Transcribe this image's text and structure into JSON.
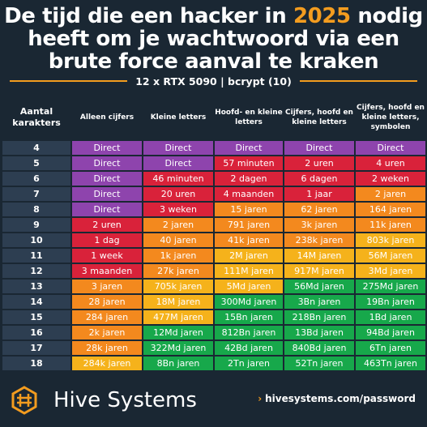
{
  "title": {
    "before": "De tijd die een hacker in ",
    "year": "2025",
    "after": " nodig heeft om je wachtwoord via een brute force aanval te kraken"
  },
  "subtitle": "12 x RTX 5090 | bcrypt (10)",
  "columns": [
    "Aantal karakters",
    "Alleen cijfers",
    "Kleine letters",
    "Hoofd- en kleine letters",
    "Cijfers, hoofd en kleine letters",
    "Cijfers, hoofd en kleine letters, symbolen"
  ],
  "colors": {
    "purple": "#8e44ad",
    "red": "#d9223a",
    "orange": "#f3891e",
    "yellow": "#f5b21b",
    "green": "#17a84b",
    "accent": "#f39c1f",
    "background": "#1a2733",
    "rowlabel": "#2d3e51"
  },
  "rows": [
    {
      "n": "4",
      "cells": [
        [
          "Direct",
          "purple"
        ],
        [
          "Direct",
          "purple"
        ],
        [
          "Direct",
          "purple"
        ],
        [
          "Direct",
          "purple"
        ],
        [
          "Direct",
          "purple"
        ]
      ]
    },
    {
      "n": "5",
      "cells": [
        [
          "Direct",
          "purple"
        ],
        [
          "Direct",
          "purple"
        ],
        [
          "57 minuten",
          "red"
        ],
        [
          "2 uren",
          "red"
        ],
        [
          "4 uren",
          "red"
        ]
      ]
    },
    {
      "n": "6",
      "cells": [
        [
          "Direct",
          "purple"
        ],
        [
          "46 minuten",
          "red"
        ],
        [
          "2 dagen",
          "red"
        ],
        [
          "6 dagen",
          "red"
        ],
        [
          "2 weken",
          "red"
        ]
      ]
    },
    {
      "n": "7",
      "cells": [
        [
          "Direct",
          "purple"
        ],
        [
          "20 uren",
          "red"
        ],
        [
          "4 maanden",
          "red"
        ],
        [
          "1 jaar",
          "red"
        ],
        [
          "2 jaren",
          "orange"
        ]
      ]
    },
    {
      "n": "8",
      "cells": [
        [
          "Direct",
          "purple"
        ],
        [
          "3 weken",
          "red"
        ],
        [
          "15 jaren",
          "orange"
        ],
        [
          "62 jaren",
          "orange"
        ],
        [
          "164 jaren",
          "orange"
        ]
      ]
    },
    {
      "n": "9",
      "cells": [
        [
          "2 uren",
          "red"
        ],
        [
          "2 jaren",
          "orange"
        ],
        [
          "791 jaren",
          "orange"
        ],
        [
          "3k jaren",
          "orange"
        ],
        [
          "11k jaren",
          "orange"
        ]
      ]
    },
    {
      "n": "10",
      "cells": [
        [
          "1 dag",
          "red"
        ],
        [
          "40 jaren",
          "orange"
        ],
        [
          "41k jaren",
          "orange"
        ],
        [
          "238k jaren",
          "orange"
        ],
        [
          "803k jaren",
          "yellow"
        ]
      ]
    },
    {
      "n": "11",
      "cells": [
        [
          "1 week",
          "red"
        ],
        [
          "1k jaren",
          "orange"
        ],
        [
          "2M jaren",
          "yellow"
        ],
        [
          "14M jaren",
          "yellow"
        ],
        [
          "56M jaren",
          "yellow"
        ]
      ]
    },
    {
      "n": "12",
      "cells": [
        [
          "3 maanden",
          "red"
        ],
        [
          "27k jaren",
          "orange"
        ],
        [
          "111M jaren",
          "yellow"
        ],
        [
          "917M jaren",
          "yellow"
        ],
        [
          "3Md jaren",
          "yellow"
        ]
      ]
    },
    {
      "n": "13",
      "cells": [
        [
          "3 jaren",
          "orange"
        ],
        [
          "705k jaren",
          "yellow"
        ],
        [
          "5Md jaren",
          "yellow"
        ],
        [
          "56Md jaren",
          "green"
        ],
        [
          "275Md jaren",
          "green"
        ]
      ]
    },
    {
      "n": "14",
      "cells": [
        [
          "28 jaren",
          "orange"
        ],
        [
          "18M jaren",
          "yellow"
        ],
        [
          "300Md jaren",
          "green"
        ],
        [
          "3Bn jaren",
          "green"
        ],
        [
          "19Bn jaren",
          "green"
        ]
      ]
    },
    {
      "n": "15",
      "cells": [
        [
          "284 jaren",
          "orange"
        ],
        [
          "477M jaren",
          "yellow"
        ],
        [
          "15Bn jaren",
          "green"
        ],
        [
          "218Bn jaren",
          "green"
        ],
        [
          "1Bd jaren",
          "green"
        ]
      ]
    },
    {
      "n": "16",
      "cells": [
        [
          "2k jaren",
          "orange"
        ],
        [
          "12Md jaren",
          "green"
        ],
        [
          "812Bn jaren",
          "green"
        ],
        [
          "13Bd jaren",
          "green"
        ],
        [
          "94Bd jaren",
          "green"
        ]
      ]
    },
    {
      "n": "17",
      "cells": [
        [
          "28k jaren",
          "orange"
        ],
        [
          "322Md jaren",
          "green"
        ],
        [
          "42Bd jaren",
          "green"
        ],
        [
          "840Bd jaren",
          "green"
        ],
        [
          "6Tn jaren",
          "green"
        ]
      ]
    },
    {
      "n": "18",
      "cells": [
        [
          "284k jaren",
          "yellow"
        ],
        [
          "8Bn jaren",
          "green"
        ],
        [
          "2Tn jaren",
          "green"
        ],
        [
          "52Tn jaren",
          "green"
        ],
        [
          "463Tn jaren",
          "green"
        ]
      ]
    }
  ],
  "footer": {
    "brand": "Hive Systems",
    "link_chevron": "›",
    "link": "hivesystems.com/password",
    "logo_icon": "hive-logo-icon"
  }
}
